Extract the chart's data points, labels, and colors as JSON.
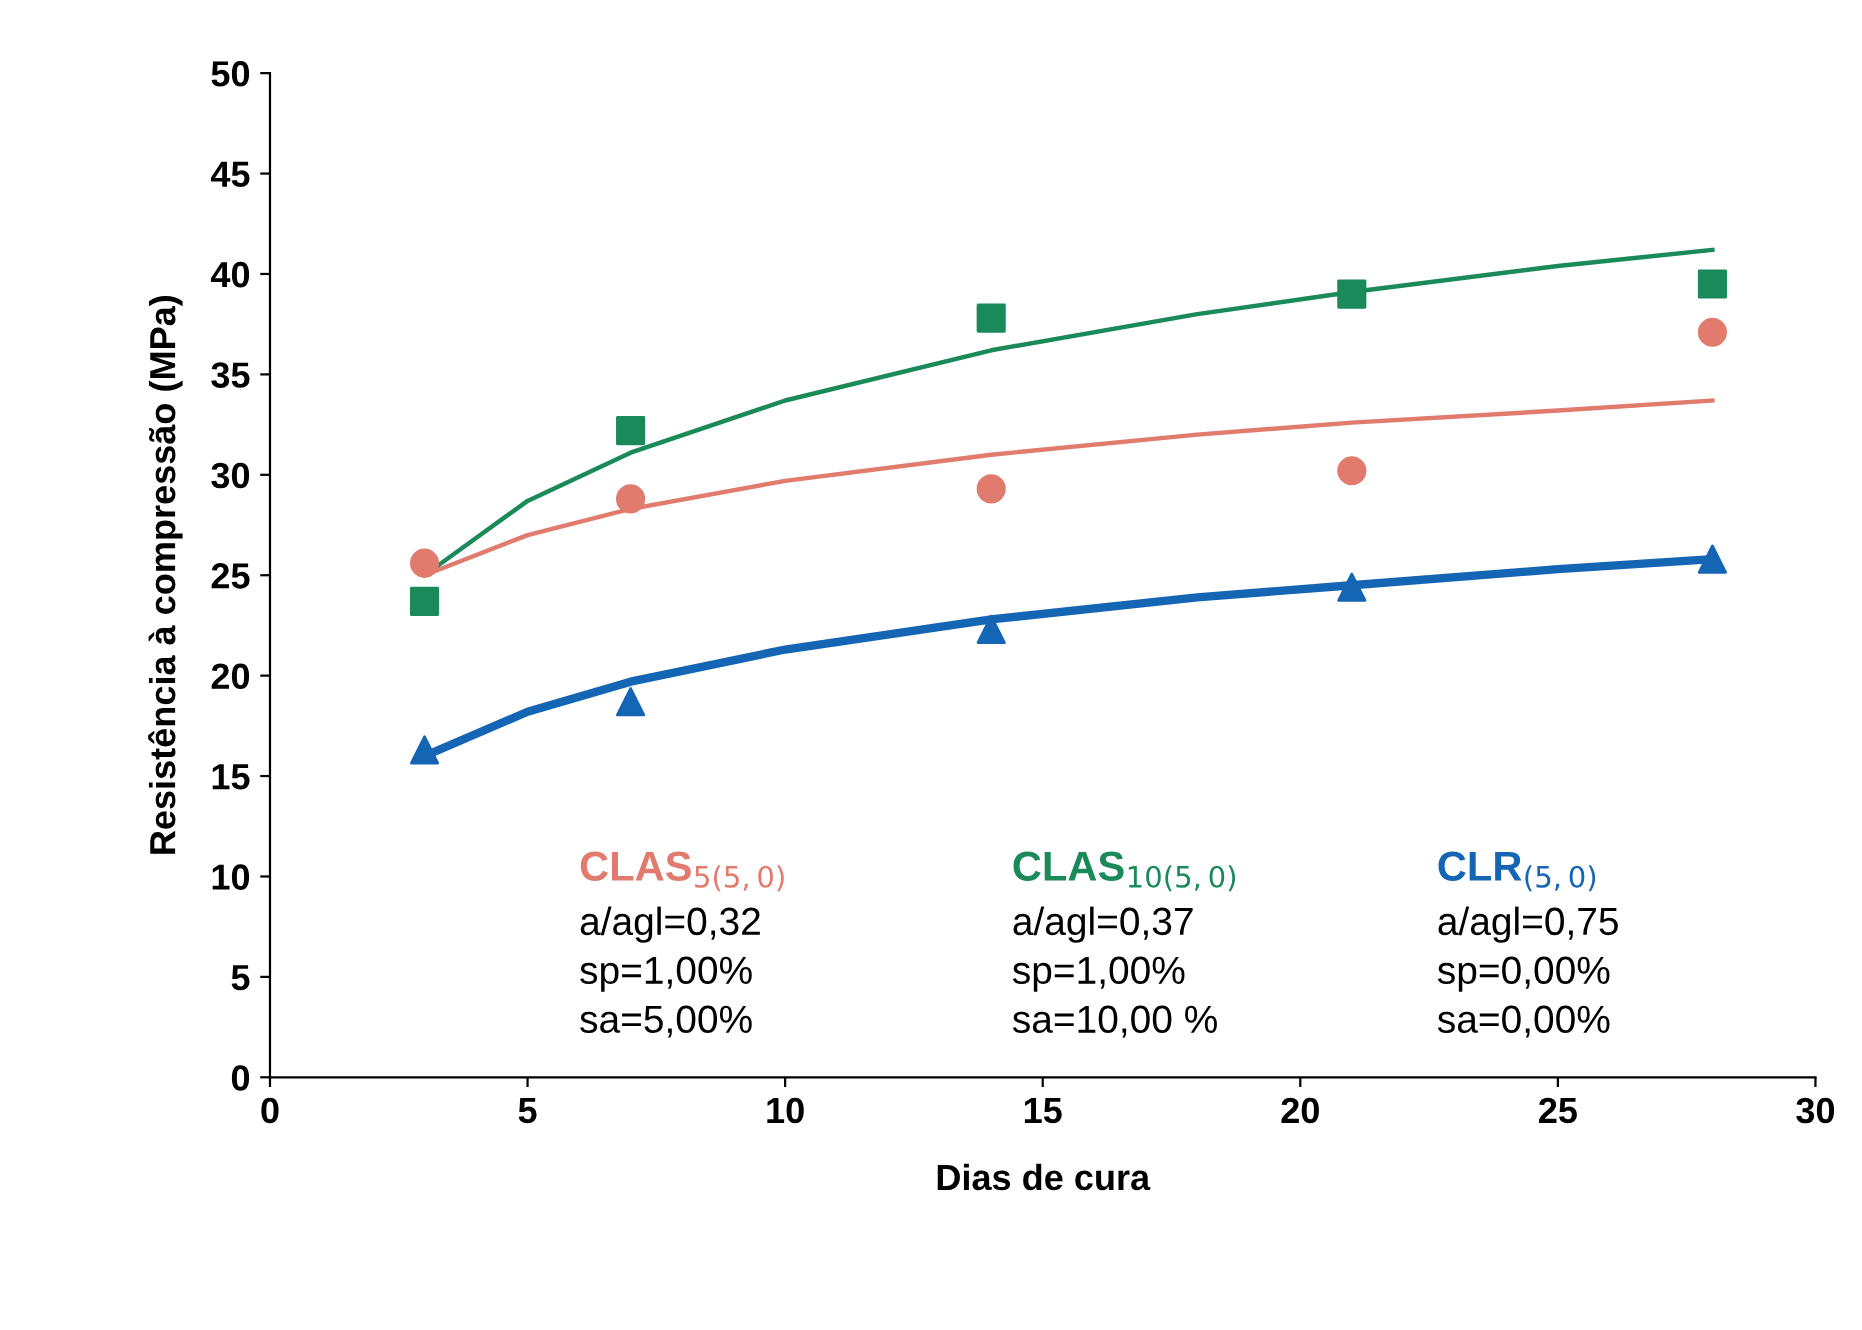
{
  "chart_data": {
    "type": "scatter",
    "xlabel": "Dias de cura",
    "ylabel": "Resistência à compressão (MPa)",
    "xlim": [
      0,
      30
    ],
    "xticks": [
      0,
      5,
      10,
      15,
      20,
      25,
      30
    ],
    "ylim": [
      0,
      50
    ],
    "yticks": [
      0,
      5,
      10,
      15,
      20,
      25,
      30,
      35,
      40,
      45,
      50
    ],
    "grid": false,
    "series": [
      {
        "name": "CLAS$_{5(5,0)}$",
        "color": "#e07b6e",
        "marker": "circle",
        "x": [
          3,
          7,
          14,
          21,
          28
        ],
        "values": [
          25.6,
          28.8,
          29.3,
          30.2,
          37.1
        ]
      },
      {
        "name": "CLAS$_{10(5,0)}$",
        "color": "#1a8a5a",
        "marker": "square",
        "x": [
          3,
          7,
          14,
          21,
          28
        ],
        "values": [
          23.7,
          32.2,
          37.8,
          39.0,
          39.5
        ]
      },
      {
        "name": "CLR$_{(5,0)}$",
        "color": "#1565b5",
        "marker": "triangle",
        "x": [
          3,
          7,
          14,
          21,
          28
        ],
        "values": [
          16.3,
          18.7,
          22.3,
          24.4,
          25.8
        ]
      },
      {
        "type": "line",
        "color": "#e07b6e",
        "marker": "none",
        "line_style": "solid",
        "x": [
          3,
          5,
          7,
          10,
          14,
          18,
          21,
          25,
          28
        ],
        "values": [
          25.0,
          27.0,
          28.3,
          29.7,
          31.0,
          32.0,
          32.6,
          33.2,
          33.7
        ]
      },
      {
        "type": "line",
        "color": "#1a8a5a",
        "marker": "none",
        "line_style": "solid",
        "x": [
          3,
          5,
          7,
          10,
          14,
          18,
          21,
          25,
          28
        ],
        "values": [
          25.0,
          28.7,
          31.1,
          33.7,
          36.2,
          38.0,
          39.1,
          40.4,
          41.2
        ]
      },
      {
        "type": "line",
        "color": "#1565b5",
        "marker": "none",
        "line_style": "solid",
        "x": [
          3,
          5,
          7,
          10,
          14,
          18,
          21,
          25,
          28
        ],
        "values": [
          16.0,
          18.2,
          19.7,
          21.3,
          22.8,
          23.9,
          24.5,
          25.3,
          25.8
        ]
      }
    ],
    "annotations": [
      "a/agl=0,32\nsp=1,00%\nsa=5,00%",
      "a/agl=0,37\nsp=1,00%\nsa=10,00 %",
      "a/agl=0,75\nsp=0,00%\nsa=0,00%"
    ]
  }
}
